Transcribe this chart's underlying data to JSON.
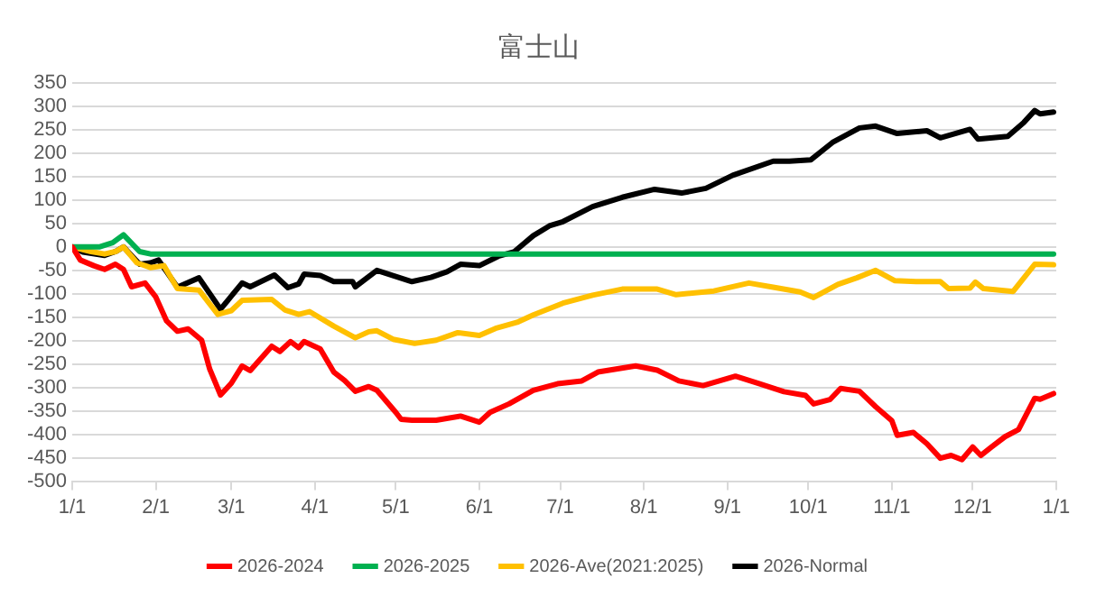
{
  "chart_data": {
    "type": "line",
    "title": "富士山",
    "xlim": [
      "2026-01-01",
      "2027-01-01"
    ],
    "xticks": [
      {
        "value": "2026-01-01",
        "label": "1/1"
      },
      {
        "value": "2026-02-01",
        "label": "2/1"
      },
      {
        "value": "2026-03-01",
        "label": "3/1"
      },
      {
        "value": "2026-04-01",
        "label": "4/1"
      },
      {
        "value": "2026-05-01",
        "label": "5/1"
      },
      {
        "value": "2026-06-01",
        "label": "6/1"
      },
      {
        "value": "2026-07-01",
        "label": "7/1"
      },
      {
        "value": "2026-08-01",
        "label": "8/1"
      },
      {
        "value": "2026-09-01",
        "label": "9/1"
      },
      {
        "value": "2026-10-01",
        "label": "10/1"
      },
      {
        "value": "2026-11-01",
        "label": "11/1"
      },
      {
        "value": "2026-12-01",
        "label": "12/1"
      },
      {
        "value": "2027-01-01",
        "label": "1/1"
      }
    ],
    "ylim": [
      -500,
      350
    ],
    "yticks": [
      -500,
      -450,
      -400,
      -350,
      -300,
      -250,
      -200,
      -150,
      -100,
      -50,
      0,
      50,
      100,
      150,
      200,
      250,
      300,
      350
    ],
    "grid": "y",
    "legend": "bottom",
    "marker": "none",
    "line_style": "solid",
    "series": [
      {
        "name": "2026-2024",
        "color": "#ff0000",
        "x": [
          "2026-01-01",
          "2026-01-04",
          "2026-01-09",
          "2026-01-13",
          "2026-01-17",
          "2026-01-20",
          "2026-01-23",
          "2026-01-28",
          "2026-02-01",
          "2026-02-05",
          "2026-02-09",
          "2026-02-13",
          "2026-02-18",
          "2026-02-21",
          "2026-02-25",
          "2026-03-01",
          "2026-03-05",
          "2026-03-08",
          "2026-03-16",
          "2026-03-19",
          "2026-03-23",
          "2026-03-26",
          "2026-03-28",
          "2026-04-03",
          "2026-04-08",
          "2026-04-12",
          "2026-04-16",
          "2026-04-21",
          "2026-04-24",
          "2026-05-01",
          "2026-05-03",
          "2026-05-07",
          "2026-05-16",
          "2026-05-25",
          "2026-06-01",
          "2026-06-05",
          "2026-06-12",
          "2026-06-21",
          "2026-06-30",
          "2026-07-09",
          "2026-07-15",
          "2026-07-29",
          "2026-08-06",
          "2026-08-14",
          "2026-08-23",
          "2026-09-04",
          "2026-09-13",
          "2026-09-22",
          "2026-09-30",
          "2026-10-03",
          "2026-10-09",
          "2026-10-13",
          "2026-10-20",
          "2026-10-26",
          "2026-11-01",
          "2026-11-03",
          "2026-11-09",
          "2026-11-14",
          "2026-11-19",
          "2026-11-23",
          "2026-11-27",
          "2026-12-01",
          "2026-12-04",
          "2026-12-08",
          "2026-12-13",
          "2026-12-18",
          "2026-12-24",
          "2026-12-26",
          "2026-12-31"
        ],
        "values": [
          0,
          -28,
          -40,
          -48,
          -37,
          -48,
          -85,
          -77,
          -107,
          -158,
          -180,
          -175,
          -199,
          -261,
          -316,
          -291,
          -254,
          -264,
          -212,
          -223,
          -202,
          -215,
          -202,
          -218,
          -267,
          -285,
          -308,
          -298,
          -306,
          -353,
          -368,
          -370,
          -370,
          -361,
          -374,
          -353,
          -335,
          -306,
          -292,
          -286,
          -267,
          -254,
          -263,
          -286,
          -296,
          -276,
          -292,
          -309,
          -317,
          -335,
          -326,
          -302,
          -308,
          -341,
          -371,
          -402,
          -396,
          -420,
          -451,
          -445,
          -454,
          -427,
          -445,
          -427,
          -405,
          -390,
          -323,
          -325,
          -313
        ]
      },
      {
        "name": "2026-2025",
        "color": "#00b050",
        "x": [
          "2026-01-01",
          "2026-01-11",
          "2026-01-16",
          "2026-01-20",
          "2026-01-26",
          "2026-01-30",
          "2026-12-31"
        ],
        "values": [
          0,
          0,
          9,
          26,
          -10,
          -15,
          -15
        ]
      },
      {
        "name": "2026-Ave(2021:2025)",
        "color": "#ffc000",
        "x": [
          "2026-01-01",
          "2026-01-08",
          "2026-01-13",
          "2026-01-17",
          "2026-01-20",
          "2026-01-25",
          "2026-01-30",
          "2026-02-04",
          "2026-02-09",
          "2026-02-17",
          "2026-02-24",
          "2026-03-01",
          "2026-03-05",
          "2026-03-16",
          "2026-03-21",
          "2026-03-26",
          "2026-03-30",
          "2026-04-08",
          "2026-04-16",
          "2026-04-21",
          "2026-04-24",
          "2026-04-30",
          "2026-05-08",
          "2026-05-16",
          "2026-05-24",
          "2026-06-01",
          "2026-06-07",
          "2026-06-15",
          "2026-06-21",
          "2026-07-02",
          "2026-07-13",
          "2026-07-24",
          "2026-08-06",
          "2026-08-13",
          "2026-08-27",
          "2026-09-09",
          "2026-09-18",
          "2026-09-28",
          "2026-10-03",
          "2026-10-12",
          "2026-10-19",
          "2026-10-26",
          "2026-11-02",
          "2026-11-10",
          "2026-11-19",
          "2026-11-22",
          "2026-11-30",
          "2026-12-02",
          "2026-12-05",
          "2026-12-16",
          "2026-12-24",
          "2026-12-31"
        ],
        "values": [
          0,
          -10,
          -15,
          -10,
          0,
          -34,
          -44,
          -40,
          -89,
          -92,
          -144,
          -136,
          -114,
          -112,
          -135,
          -144,
          -138,
          -169,
          -194,
          -181,
          -179,
          -197,
          -206,
          -199,
          -183,
          -189,
          -174,
          -161,
          -145,
          -120,
          -103,
          -90,
          -90,
          -102,
          -94,
          -77,
          -86,
          -96,
          -108,
          -80,
          -66,
          -50,
          -72,
          -74,
          -74,
          -89,
          -88,
          -75,
          -89,
          -95,
          -37,
          -38
        ]
      },
      {
        "name": "2026-Normal",
        "color": "#000000",
        "x": [
          "2026-01-01",
          "2026-01-05",
          "2026-01-13",
          "2026-01-17",
          "2026-01-20",
          "2026-01-26",
          "2026-01-30",
          "2026-02-02",
          "2026-02-09",
          "2026-02-17",
          "2026-02-25",
          "2026-03-05",
          "2026-03-08",
          "2026-03-17",
          "2026-03-22",
          "2026-03-26",
          "2026-03-28",
          "2026-04-03",
          "2026-04-08",
          "2026-04-15",
          "2026-04-16",
          "2026-04-24",
          "2026-05-07",
          "2026-05-14",
          "2026-05-20",
          "2026-05-25",
          "2026-06-01",
          "2026-06-08",
          "2026-06-14",
          "2026-06-21",
          "2026-06-27",
          "2026-07-02",
          "2026-07-13",
          "2026-07-24",
          "2026-08-05",
          "2026-08-15",
          "2026-08-24",
          "2026-09-03",
          "2026-09-18",
          "2026-09-24",
          "2026-10-02",
          "2026-10-10",
          "2026-10-20",
          "2026-10-26",
          "2026-11-03",
          "2026-11-14",
          "2026-11-19",
          "2026-11-30",
          "2026-12-03",
          "2026-12-14",
          "2026-12-20",
          "2026-12-24",
          "2026-12-26",
          "2026-12-31"
        ],
        "values": [
          0,
          -11,
          -18,
          -10,
          0,
          -37,
          -34,
          -28,
          -86,
          -66,
          -133,
          -77,
          -85,
          -60,
          -87,
          -79,
          -58,
          -61,
          -74,
          -74,
          -85,
          -50,
          -74,
          -65,
          -53,
          -37,
          -40,
          -20,
          -10,
          24,
          45,
          54,
          86,
          106,
          123,
          115,
          125,
          153,
          183,
          183,
          186,
          223,
          254,
          258,
          242,
          248,
          233,
          251,
          230,
          236,
          266,
          291,
          284,
          288
        ]
      }
    ]
  }
}
